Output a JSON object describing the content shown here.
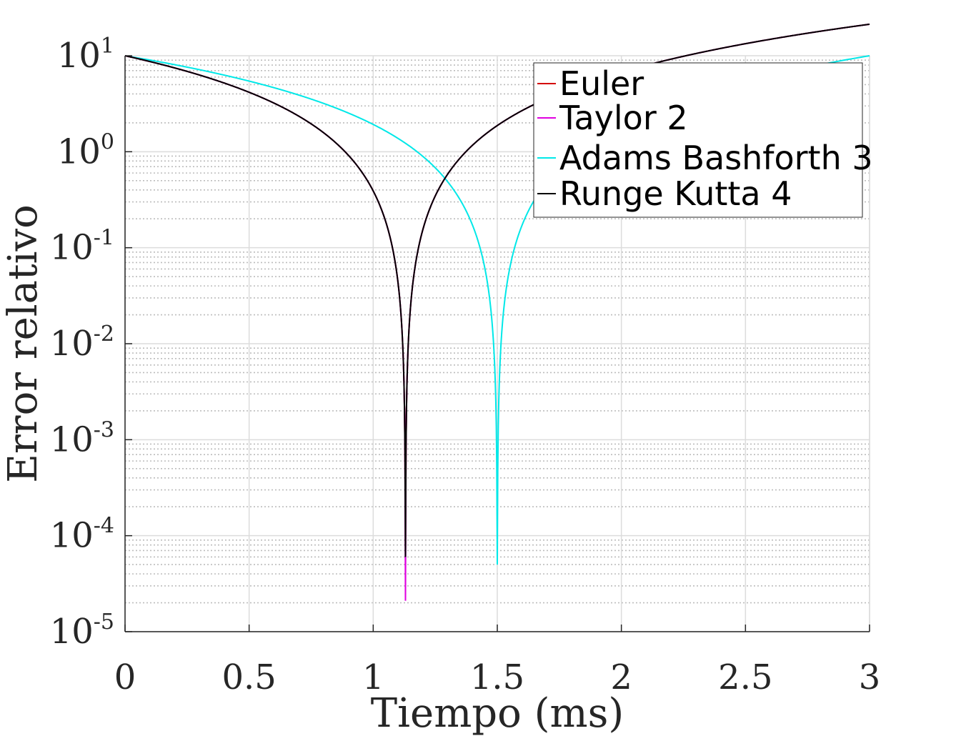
{
  "chart_data": {
    "type": "line",
    "title": "",
    "xlabel": "Tiempo (ms)",
    "ylabel": "Error relativo",
    "x_scale": "linear",
    "y_scale": "log",
    "xlim": [
      0,
      3
    ],
    "ylim": [
      1e-05,
      10
    ],
    "x_ticks": [
      {
        "value": 0,
        "label": "0"
      },
      {
        "value": 0.5,
        "label": "0.5"
      },
      {
        "value": 1,
        "label": "1"
      },
      {
        "value": 1.5,
        "label": "1.5"
      },
      {
        "value": 2,
        "label": "2"
      },
      {
        "value": 2.5,
        "label": "2.5"
      },
      {
        "value": 3,
        "label": "3"
      }
    ],
    "y_ticks": [
      {
        "exp": 1,
        "base": "10",
        "sup": "1"
      },
      {
        "exp": 0,
        "base": "10",
        "sup": "0"
      },
      {
        "exp": -1,
        "base": "10",
        "sup": "-1"
      },
      {
        "exp": -2,
        "base": "10",
        "sup": "-2"
      },
      {
        "exp": -3,
        "base": "10",
        "sup": "-3"
      },
      {
        "exp": -4,
        "base": "10",
        "sup": "-4"
      },
      {
        "exp": -5,
        "base": "10",
        "sup": "-5"
      }
    ],
    "grid": true,
    "minor_grid": true,
    "legend_position": "top-right",
    "series": [
      {
        "name": "Euler",
        "color": "#d40000",
        "model": {
          "amplitude": 10,
          "t0": 1.13,
          "floor": 6e-05
        }
      },
      {
        "name": "Taylor 2",
        "color": "#e000e0",
        "model": {
          "amplitude": 10,
          "t0": 1.13,
          "floor": 2.1e-05
        }
      },
      {
        "name": "Adams Bashforth 3",
        "color": "#00e8e8",
        "model": {
          "amplitude": 10,
          "t0": 1.5,
          "floor": 5e-05
        }
      },
      {
        "name": "Runge Kutta 4",
        "color": "#000000",
        "model": {
          "amplitude": 10,
          "t0": 1.13,
          "floor": 6e-05
        }
      }
    ]
  }
}
